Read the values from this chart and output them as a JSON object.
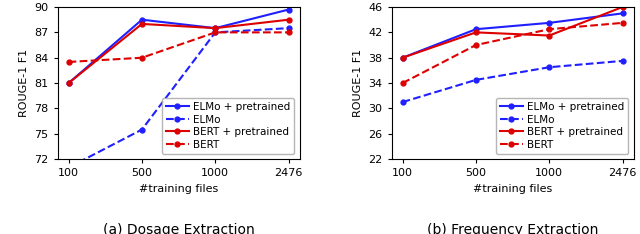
{
  "x": [
    0,
    1,
    2,
    3
  ],
  "x_labels": [
    "100",
    "500",
    "1000",
    "2476"
  ],
  "left": {
    "caption": "(a) Dosage Extraction",
    "ylabel": "ROUGE-1 F1",
    "xlabel": "#training files",
    "ylim": [
      72,
      90
    ],
    "yticks": [
      72,
      75,
      78,
      81,
      84,
      87,
      90
    ],
    "elmo_pretrained": [
      81.0,
      88.5,
      87.5,
      89.7
    ],
    "elmo": [
      71.0,
      75.5,
      87.0,
      87.5
    ],
    "bert_pretrained": [
      81.0,
      88.0,
      87.5,
      88.5
    ],
    "bert": [
      83.5,
      84.0,
      87.0,
      87.0
    ]
  },
  "right": {
    "caption": "(b) Frequency Extraction",
    "ylabel": "ROUGE-1 F1",
    "xlabel": "#training files",
    "ylim": [
      22,
      46
    ],
    "yticks": [
      22,
      26,
      30,
      34,
      38,
      42,
      46
    ],
    "elmo_pretrained": [
      38.0,
      42.5,
      43.5,
      45.0
    ],
    "elmo": [
      31.0,
      34.5,
      36.5,
      37.5
    ],
    "bert_pretrained": [
      38.0,
      42.0,
      41.5,
      46.0
    ],
    "bert": [
      34.0,
      40.0,
      42.5,
      43.5
    ]
  },
  "colors": {
    "blue": "#1f1fff",
    "red": "#dd0000"
  },
  "legend_labels": [
    "ELMo + pretrained",
    "ELMo",
    "BERT + pretrained",
    "BERT"
  ],
  "caption_fontsize": 10,
  "label_fontsize": 8,
  "tick_fontsize": 8,
  "legend_fontsize": 7.5
}
